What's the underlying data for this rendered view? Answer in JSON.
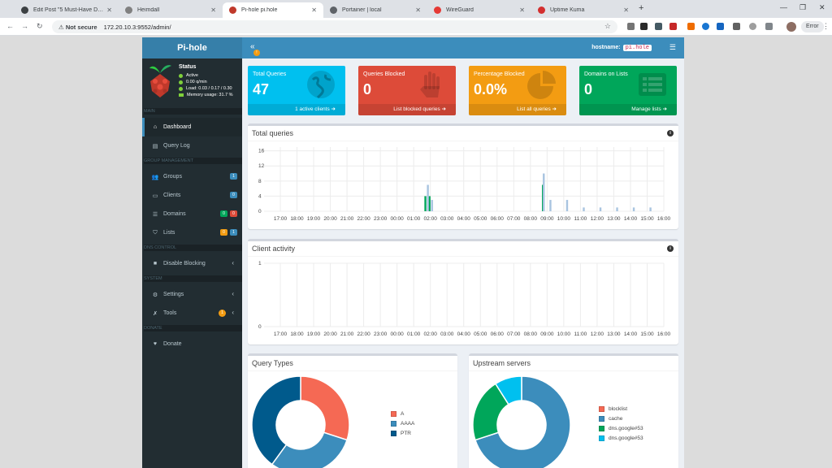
{
  "browser": {
    "tabs": [
      {
        "label": "Edit Post \"5 Must-Have Docker",
        "color": "#3c4043",
        "left": 18,
        "width": 128
      },
      {
        "label": "Heimdall",
        "color": "#808080",
        "left": 146,
        "width": 128
      },
      {
        "label": "Pi-hole pi.hole",
        "color": "#c0392b",
        "left": 274,
        "width": 124
      },
      {
        "label": "Portainer | local",
        "color": "#5f6368",
        "left": 398,
        "width": 128
      },
      {
        "label": "WireGuard",
        "color": "#e53935",
        "left": 526,
        "width": 128
      },
      {
        "label": "Uptime Kuma",
        "color": "#d32f2f",
        "left": 654,
        "width": 128
      }
    ],
    "not_secure": "Not secure",
    "url": "172.20.10.3:9552/admin/",
    "error_chip": "Error"
  },
  "app": {
    "logo": "Pi-hole",
    "hostname_label": "hostname:",
    "hostname_value": "pi.hole",
    "toggle_badge": "!",
    "status": {
      "title": "Status",
      "active": "Active",
      "rate": "0.00 q/min",
      "load": "Load:  0.03 / 0.17 / 0.30",
      "memory": "Memory usage:  31.7 %"
    },
    "sections": {
      "main": "MAIN",
      "group": "GROUP MANAGEMENT",
      "dns": "DNS CONTROL",
      "system": "SYSTEM",
      "donate": "DONATE"
    },
    "nav": {
      "dashboard": "Dashboard",
      "query_log": "Query Log",
      "groups": "Groups",
      "groups_badge": "1",
      "clients": "Clients",
      "clients_badge": "0",
      "domains": "Domains",
      "domains_badge_green": "0",
      "domains_badge_red": "0",
      "lists": "Lists",
      "lists_badge_orange": "0",
      "lists_badge_blue": "1",
      "disable_blocking": "Disable Blocking",
      "settings": "Settings",
      "tools": "Tools",
      "tools_badge": "1",
      "donate": "Donate"
    },
    "stats": [
      {
        "label": "Total Queries",
        "value": "47",
        "link": "1 active clients",
        "color": "#00c0ef",
        "icon": "globe-icon"
      },
      {
        "label": "Queries Blocked",
        "value": "0",
        "link": "List blocked queries",
        "color": "#dd4b39",
        "icon": "hand-icon"
      },
      {
        "label": "Percentage Blocked",
        "value": "0.0%",
        "link": "List all queries",
        "color": "#f39c12",
        "icon": "pie-icon"
      },
      {
        "label": "Domains on Lists",
        "value": "0",
        "link": "Manage lists",
        "color": "#00a65a",
        "icon": "list-icon"
      }
    ],
    "total_queries_title": "Total queries",
    "client_activity_title": "Client activity",
    "query_types_title": "Query Types",
    "upstream_title": "Upstream servers",
    "info": "i"
  },
  "chart_data": [
    {
      "type": "bar",
      "title": "Total queries",
      "categories": [
        "17:00",
        "18:00",
        "19:00",
        "20:00",
        "21:00",
        "22:00",
        "23:00",
        "00:00",
        "01:00",
        "02:00",
        "03:00",
        "04:00",
        "05:00",
        "06:00",
        "07:00",
        "08:00",
        "09:00",
        "10:00",
        "11:00",
        "12:00",
        "13:00",
        "14:00",
        "15:00",
        "16:00"
      ],
      "yticks": [
        0,
        4,
        8,
        12,
        16
      ],
      "ylim": [
        0,
        17
      ],
      "grid": true,
      "series": [
        {
          "color": "#00a65a",
          "points": [
            [
              8.7,
              4
            ],
            [
              8.95,
              4
            ],
            [
              15.75,
              7
            ]
          ]
        },
        {
          "color": "#a8c4e0",
          "points": [
            [
              8.85,
              7
            ],
            [
              9.1,
              3
            ],
            [
              15.8,
              10
            ],
            [
              16.2,
              3
            ],
            [
              17.2,
              3
            ],
            [
              18.2,
              1
            ],
            [
              19.2,
              1
            ],
            [
              20.2,
              1
            ],
            [
              21.2,
              1
            ],
            [
              22.2,
              1
            ]
          ]
        }
      ]
    },
    {
      "type": "line",
      "title": "Client activity",
      "categories": [
        "17:00",
        "18:00",
        "19:00",
        "20:00",
        "21:00",
        "22:00",
        "23:00",
        "00:00",
        "01:00",
        "02:00",
        "03:00",
        "04:00",
        "05:00",
        "06:00",
        "07:00",
        "08:00",
        "09:00",
        "10:00",
        "11:00",
        "12:00",
        "13:00",
        "14:00",
        "15:00",
        "16:00"
      ],
      "yticks": [
        0,
        1
      ],
      "ylim": [
        0,
        1
      ],
      "grid": true
    },
    {
      "type": "pie",
      "title": "Query Types",
      "donut": true,
      "slices": [
        {
          "label": "A",
          "value": 30,
          "color": "#f56954"
        },
        {
          "label": "AAAA",
          "value": 30,
          "color": "#3c8dbc"
        },
        {
          "label": "PTR",
          "value": 40,
          "color": "#005a8c"
        }
      ]
    },
    {
      "type": "pie",
      "title": "Upstream servers",
      "donut": true,
      "slices": [
        {
          "label": "blocklist",
          "value": 0,
          "color": "#f56954"
        },
        {
          "label": "cache",
          "value": 70,
          "color": "#3c8dbc"
        },
        {
          "label": "dns.google#53",
          "value": 21,
          "color": "#00a65a"
        },
        {
          "label": "dns.google#53",
          "value": 9,
          "color": "#00c0ef"
        }
      ]
    }
  ]
}
